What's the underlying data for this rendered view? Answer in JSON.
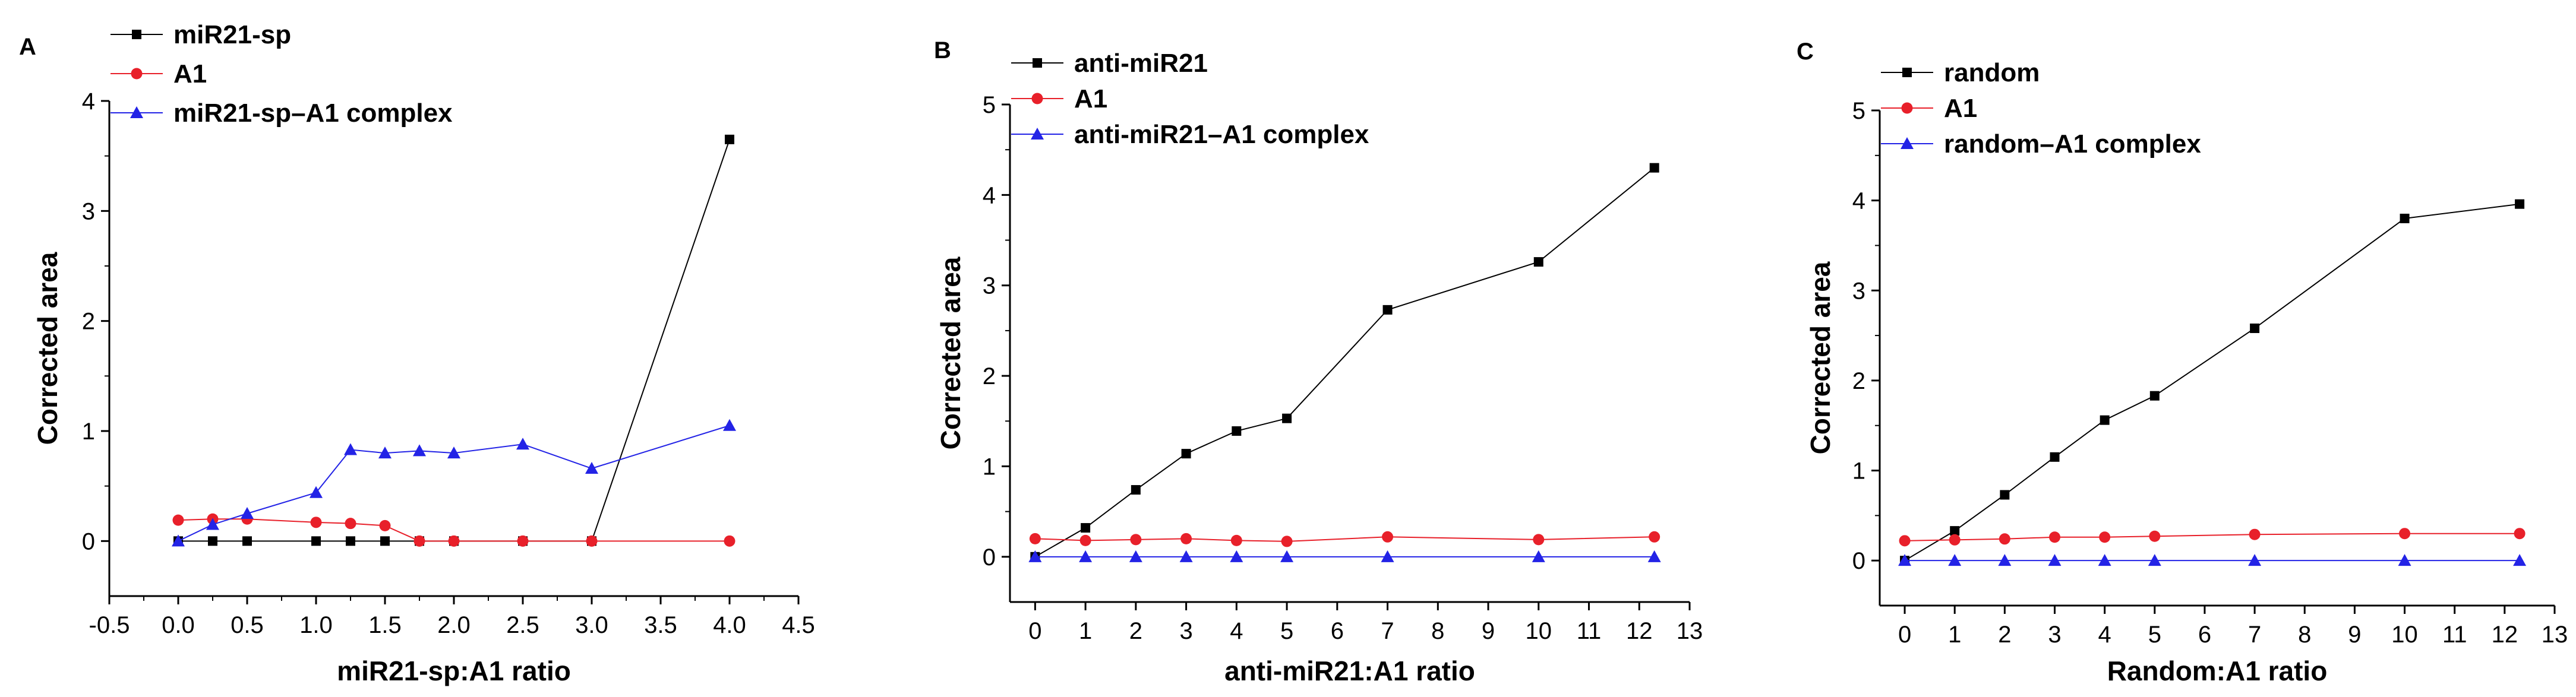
{
  "chart_data": [
    {
      "type": "line",
      "panel_label": "A",
      "xlabel": "miR21-sp:A1 ratio",
      "ylabel": "Corrected area",
      "xlim": [
        -0.5,
        4.5
      ],
      "ylim": [
        -0.5,
        4
      ],
      "xticks": [
        -0.5,
        0.0,
        0.5,
        1.0,
        1.5,
        2.0,
        2.5,
        3.0,
        3.5,
        4.0,
        4.5
      ],
      "xtick_labels": [
        "-0.5",
        "0.0",
        "0.5",
        "1.0",
        "1.5",
        "2.0",
        "2.5",
        "3.0",
        "3.5",
        "4.0",
        "4.5"
      ],
      "yticks": [
        0,
        1,
        2,
        3,
        4
      ],
      "ytick_labels": [
        "0",
        "1",
        "2",
        "3",
        "4"
      ],
      "grid": false,
      "legend_position": "top-left",
      "series": [
        {
          "name": "miR21-sp",
          "color": "#000000",
          "marker": "square",
          "x": [
            0,
            0.25,
            0.5,
            1.0,
            1.25,
            1.5,
            1.75,
            2.0,
            2.5,
            3.0,
            4.0
          ],
          "y": [
            0,
            0,
            0,
            0,
            0,
            0,
            0,
            0,
            0,
            0,
            3.65
          ]
        },
        {
          "name": "A1",
          "color": "#e8202a",
          "marker": "circle",
          "x": [
            0,
            0.25,
            0.5,
            1.0,
            1.25,
            1.5,
            1.75,
            2.0,
            2.5,
            3.0,
            4.0
          ],
          "y": [
            0.19,
            0.2,
            0.2,
            0.17,
            0.16,
            0.14,
            0,
            0,
            0,
            0,
            0
          ]
        },
        {
          "name": "miR21-sp–A1 complex",
          "color": "#2323e6",
          "marker": "triangle",
          "x": [
            0,
            0.25,
            0.5,
            1.0,
            1.25,
            1.5,
            1.75,
            2.0,
            2.5,
            3.0,
            4.0
          ],
          "y": [
            0,
            0.15,
            0.25,
            0.44,
            0.83,
            0.8,
            0.82,
            0.8,
            0.88,
            0.66,
            1.05
          ]
        }
      ]
    },
    {
      "type": "line",
      "panel_label": "B",
      "xlabel": "anti-miR21:A1 ratio",
      "ylabel": "Corrected area",
      "xlim": [
        -0.5,
        13
      ],
      "ylim": [
        -0.5,
        5
      ],
      "xticks": [
        0,
        1,
        2,
        3,
        4,
        5,
        6,
        7,
        8,
        9,
        10,
        11,
        12,
        13
      ],
      "xtick_labels": [
        "0",
        "1",
        "2",
        "3",
        "4",
        "5",
        "6",
        "7",
        "8",
        "9",
        "10",
        "11",
        "12",
        "13"
      ],
      "yticks": [
        0,
        1,
        2,
        3,
        4,
        5
      ],
      "ytick_labels": [
        "0",
        "1",
        "2",
        "3",
        "4",
        "5"
      ],
      "grid": false,
      "legend_position": "top-left",
      "series": [
        {
          "name": "anti-miR21",
          "color": "#000000",
          "marker": "square",
          "x": [
            0,
            1,
            2,
            3,
            4,
            5,
            7,
            10,
            12.3
          ],
          "y": [
            0,
            0.32,
            0.74,
            1.14,
            1.39,
            1.53,
            2.73,
            3.26,
            4.3
          ]
        },
        {
          "name": "A1",
          "color": "#e8202a",
          "marker": "circle",
          "x": [
            0,
            1,
            2,
            3,
            4,
            5,
            7,
            10,
            12.3
          ],
          "y": [
            0.2,
            0.18,
            0.19,
            0.2,
            0.18,
            0.17,
            0.22,
            0.19,
            0.22
          ]
        },
        {
          "name": "anti-miR21–A1 complex",
          "color": "#2323e6",
          "marker": "triangle",
          "x": [
            0,
            1,
            2,
            3,
            4,
            5,
            7,
            10,
            12.3
          ],
          "y": [
            0,
            0,
            0,
            0,
            0,
            0,
            0,
            0,
            0
          ]
        }
      ]
    },
    {
      "type": "line",
      "panel_label": "C",
      "xlabel": "Random:A1 ratio",
      "ylabel": "Corrected area",
      "xlim": [
        -0.5,
        13
      ],
      "ylim": [
        -0.5,
        5
      ],
      "xticks": [
        0,
        1,
        2,
        3,
        4,
        5,
        6,
        7,
        8,
        9,
        10,
        11,
        12,
        13
      ],
      "xtick_labels": [
        "0",
        "1",
        "2",
        "3",
        "4",
        "5",
        "6",
        "7",
        "8",
        "9",
        "10",
        "11",
        "12",
        "13"
      ],
      "yticks": [
        0,
        1,
        2,
        3,
        4,
        5
      ],
      "ytick_labels": [
        "0",
        "1",
        "2",
        "3",
        "4",
        "5"
      ],
      "grid": false,
      "legend_position": "top-left",
      "series": [
        {
          "name": "random",
          "color": "#000000",
          "marker": "square",
          "x": [
            0,
            1,
            2,
            3,
            4,
            5,
            7,
            10,
            12.3
          ],
          "y": [
            0,
            0.33,
            0.73,
            1.15,
            1.56,
            1.83,
            2.58,
            3.8,
            3.96
          ]
        },
        {
          "name": "A1",
          "color": "#e8202a",
          "marker": "circle",
          "x": [
            0,
            1,
            2,
            3,
            4,
            5,
            7,
            10,
            12.3
          ],
          "y": [
            0.22,
            0.23,
            0.24,
            0.26,
            0.26,
            0.27,
            0.29,
            0.3,
            0.3
          ]
        },
        {
          "name": "random–A1 complex",
          "color": "#2323e6",
          "marker": "triangle",
          "x": [
            0,
            1,
            2,
            3,
            4,
            5,
            7,
            10,
            12.3
          ],
          "y": [
            0,
            0,
            0,
            0,
            0,
            0,
            0,
            0,
            0
          ]
        }
      ]
    }
  ]
}
